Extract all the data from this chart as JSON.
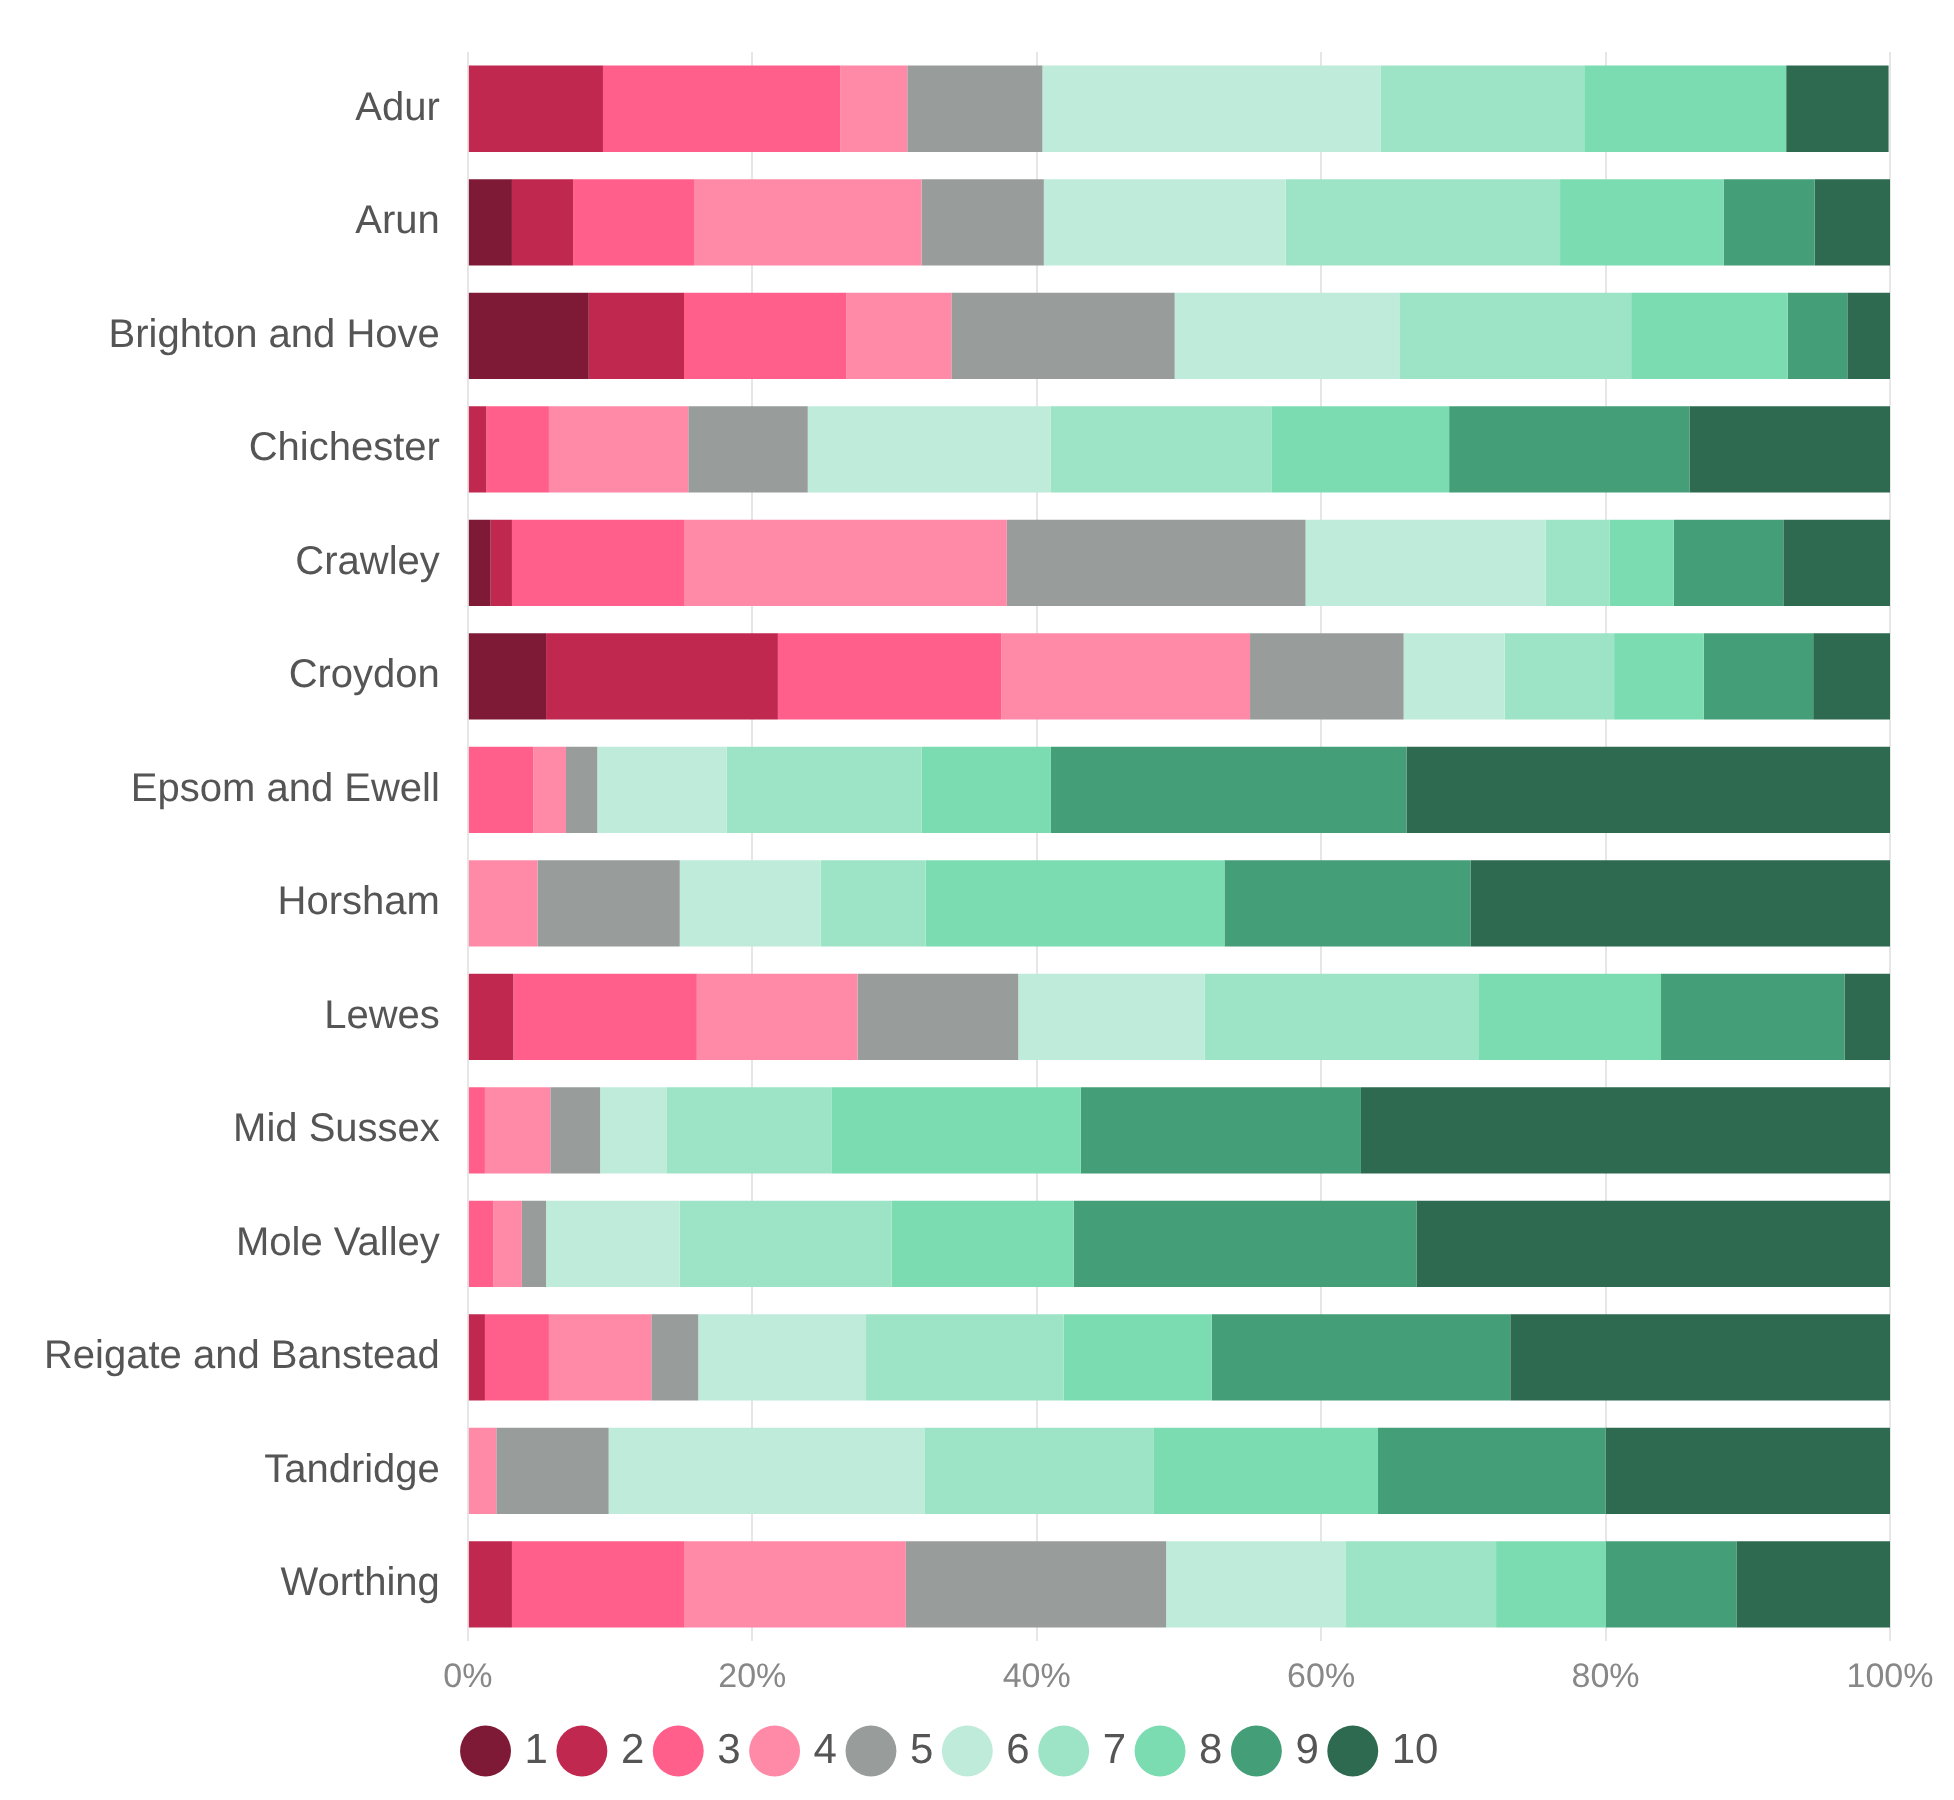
{
  "chart_data": {
    "type": "bar",
    "orientation": "horizontal",
    "stacked": true,
    "categories": [
      "Adur",
      "Arun",
      "Brighton and Hove",
      "Chichester",
      "Crawley",
      "Croydon",
      "Epsom and Ewell",
      "Horsham",
      "Lewes",
      "Mid Sussex",
      "Mole Valley",
      "Reigate and Banstead",
      "Tandridge",
      "Worthing"
    ],
    "series": [
      {
        "name": "1",
        "color": "#7f1a36",
        "values": [
          0,
          3.1,
          8.5,
          0,
          1.6,
          5.5,
          0,
          0,
          0,
          0,
          0,
          0,
          0,
          0
        ]
      },
      {
        "name": "2",
        "color": "#c0284f",
        "values": [
          9.5,
          4.3,
          6.7,
          1.3,
          1.5,
          16.3,
          0,
          0,
          3.2,
          0,
          0,
          1.2,
          0,
          3.1
        ]
      },
      {
        "name": "3",
        "color": "#ff5f8a",
        "values": [
          16.7,
          8.5,
          11.4,
          4.4,
          12.1,
          15.7,
          4.6,
          0,
          12.9,
          1.2,
          1.8,
          4.5,
          0,
          12.1
        ]
      },
      {
        "name": "4",
        "color": "#ff8aa8",
        "values": [
          4.7,
          16.0,
          7.4,
          9.8,
          22.7,
          17.5,
          2.3,
          4.9,
          11.3,
          4.6,
          2.0,
          7.2,
          2.0,
          15.6
        ]
      },
      {
        "name": "5",
        "color": "#989d9c",
        "values": [
          9.5,
          8.6,
          15.7,
          8.4,
          21.0,
          10.8,
          2.2,
          10.0,
          11.3,
          3.5,
          1.7,
          3.3,
          7.9,
          18.3
        ]
      },
      {
        "name": "6",
        "color": "#bfecda",
        "values": [
          23.8,
          17.0,
          15.8,
          17.1,
          16.9,
          7.1,
          9.1,
          9.9,
          13.1,
          4.7,
          9.4,
          11.8,
          22.2,
          12.6
        ]
      },
      {
        "name": "7",
        "color": "#9de4c6",
        "values": [
          14.3,
          19.3,
          16.3,
          15.5,
          4.5,
          7.7,
          13.7,
          7.4,
          19.3,
          11.6,
          14.9,
          13.9,
          16.1,
          10.6
        ]
      },
      {
        "name": "8",
        "color": "#7bdcb2",
        "values": [
          14.2,
          11.5,
          11.0,
          12.5,
          4.5,
          6.3,
          9.1,
          21.0,
          12.8,
          17.5,
          12.8,
          10.4,
          15.8,
          7.7
        ]
      },
      {
        "name": "9",
        "color": "#449e77",
        "values": [
          0,
          6.4,
          4.2,
          16.9,
          7.7,
          7.7,
          25.0,
          17.3,
          12.9,
          19.7,
          24.1,
          21.0,
          16.0,
          9.2
        ]
      },
      {
        "name": "10",
        "color": "#2d6a50",
        "values": [
          7.2,
          5.3,
          3.0,
          14.1,
          7.5,
          5.4,
          34.0,
          29.5,
          3.2,
          37.2,
          33.3,
          26.7,
          20.0,
          10.8
        ]
      }
    ],
    "xlim": [
      0,
      100
    ],
    "xticks": [
      {
        "value": 0,
        "label": "0%"
      },
      {
        "value": 20,
        "label": "20%"
      },
      {
        "value": 40,
        "label": "40%"
      },
      {
        "value": 60,
        "label": "60%"
      },
      {
        "value": 80,
        "label": "80%"
      },
      {
        "value": 100,
        "label": "100%"
      }
    ],
    "grid": "x",
    "legend": "bottom"
  }
}
